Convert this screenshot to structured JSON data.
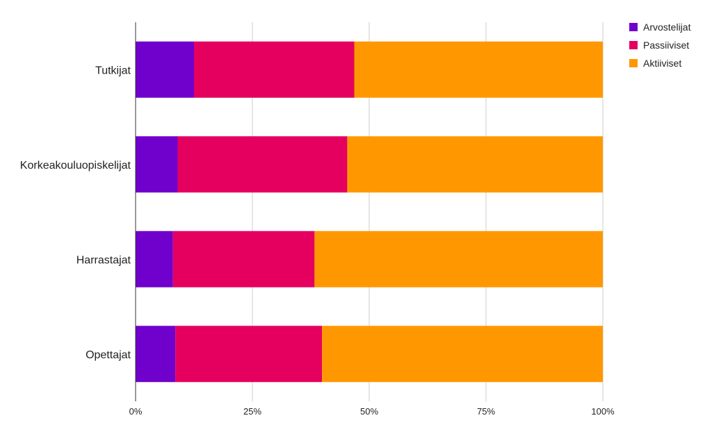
{
  "chart_data": {
    "type": "bar",
    "orientation": "horizontal",
    "stacked": "percent",
    "categories": [
      "Tutkijat",
      "Korkeakouluopiskelijat",
      "Harrastajat",
      "Opettajat"
    ],
    "series": [
      {
        "name": "Arvostelijat",
        "color": "#7000CC",
        "values": [
          12.5,
          9.0,
          8.0,
          8.5
        ]
      },
      {
        "name": "Passiiviset",
        "color": "#E5005F",
        "values": [
          34.3,
          36.3,
          30.3,
          31.4
        ]
      },
      {
        "name": "Aktiiviset",
        "color": "#FF9800",
        "values": [
          53.2,
          54.7,
          61.7,
          60.1
        ]
      }
    ],
    "x_ticks": [
      "0%",
      "25%",
      "50%",
      "75%",
      "100%"
    ],
    "xlim": [
      0,
      100
    ],
    "grid": true,
    "legend_position": "top-right"
  }
}
